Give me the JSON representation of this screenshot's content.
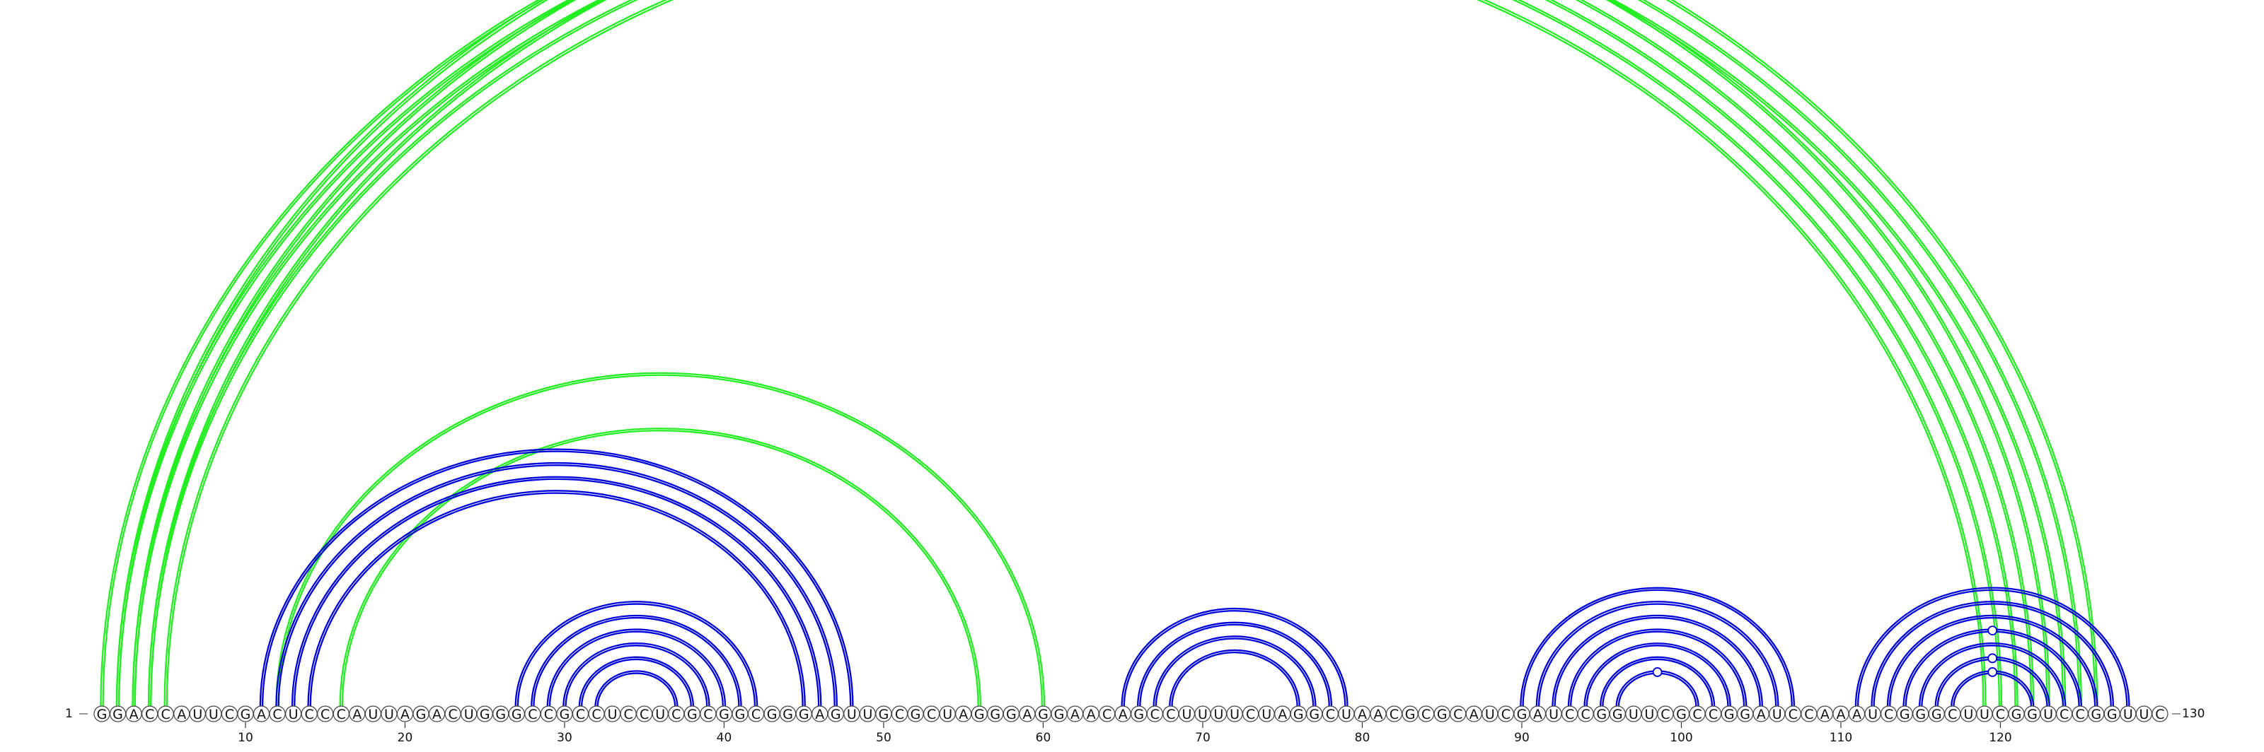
{
  "sequence": "GGACCAUUCGACUCCCAUUAGACUGGGCCGCCUCCUCGCGGCGGGAGUUGCGCUAGGGAGGAACAGCCUUUUCUAGGCUAACGCGCAUCGAUCCGGUUCGCCGGAUCCAAAUCGGGCUUCGGUCCGGUUC",
  "start_label": "1",
  "end_label": "130",
  "ticks": [
    "10",
    "20",
    "30",
    "40",
    "50",
    "60",
    "70",
    "80",
    "90",
    "100",
    "110",
    "120"
  ],
  "colors": {
    "blue": "#0000dd",
    "green": "#22ee22"
  },
  "arc_groups": [
    {
      "color": "green",
      "pairs": [
        [
          1,
          123
        ],
        [
          2,
          122
        ],
        [
          3,
          121
        ],
        [
          4,
          120
        ],
        [
          5,
          119
        ]
      ]
    },
    {
      "color": "green",
      "pairs": [
        [
          2,
          126
        ],
        [
          3,
          125
        ],
        [
          4,
          124
        ]
      ]
    },
    {
      "color": "green",
      "pairs": [
        [
          12,
          60
        ],
        [
          16,
          56
        ]
      ]
    },
    {
      "color": "blue",
      "pairs": [
        [
          11,
          48
        ],
        [
          12,
          47
        ],
        [
          13,
          46
        ],
        [
          14,
          45
        ]
      ]
    },
    {
      "color": "blue",
      "pairs": [
        [
          27,
          42
        ],
        [
          28,
          41
        ],
        [
          29,
          40
        ],
        [
          30,
          39
        ],
        [
          31,
          38
        ],
        [
          32,
          37
        ]
      ]
    },
    {
      "color": "blue",
      "pairs": [
        [
          65,
          79
        ],
        [
          66,
          78
        ],
        [
          67,
          77
        ],
        [
          68,
          76
        ]
      ]
    },
    {
      "color": "blue",
      "pairs": [
        [
          90,
          107
        ],
        [
          91,
          106
        ],
        [
          92,
          105
        ],
        [
          93,
          104
        ],
        [
          94,
          103
        ],
        [
          95,
          102
        ],
        [
          96,
          101
        ]
      ]
    },
    {
      "color": "blue",
      "pairs": [
        [
          111,
          128
        ],
        [
          112,
          127
        ],
        [
          113,
          126
        ],
        [
          114,
          125
        ],
        [
          115,
          124
        ],
        [
          116,
          123
        ],
        [
          117,
          122
        ]
      ]
    }
  ],
  "markers": [
    {
      "color": "green",
      "pair": [
        2,
        126
      ]
    },
    {
      "color": "blue",
      "pair": [
        96,
        101
      ]
    },
    {
      "color": "blue",
      "pair": [
        117,
        122
      ]
    },
    {
      "color": "blue",
      "pair": [
        116,
        123
      ]
    },
    {
      "color": "blue",
      "pair": [
        114,
        125
      ]
    }
  ]
}
